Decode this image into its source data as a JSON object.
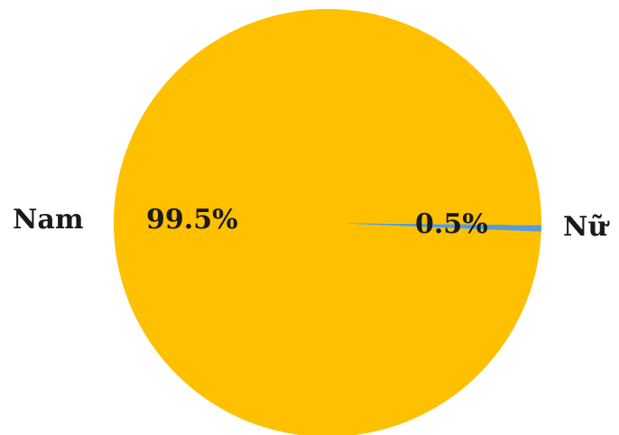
{
  "chart_data": {
    "type": "pie",
    "title": "",
    "slices": [
      {
        "label": "Nam",
        "value": 99.5,
        "pct_label": "99.5%",
        "color": "#FFC000"
      },
      {
        "label": "Nữ",
        "value": 0.5,
        "pct_label": "0.5%",
        "color": "#5B9BD5"
      }
    ],
    "legend": "none",
    "start_angle_deg": 0,
    "direction": "clockwise"
  }
}
